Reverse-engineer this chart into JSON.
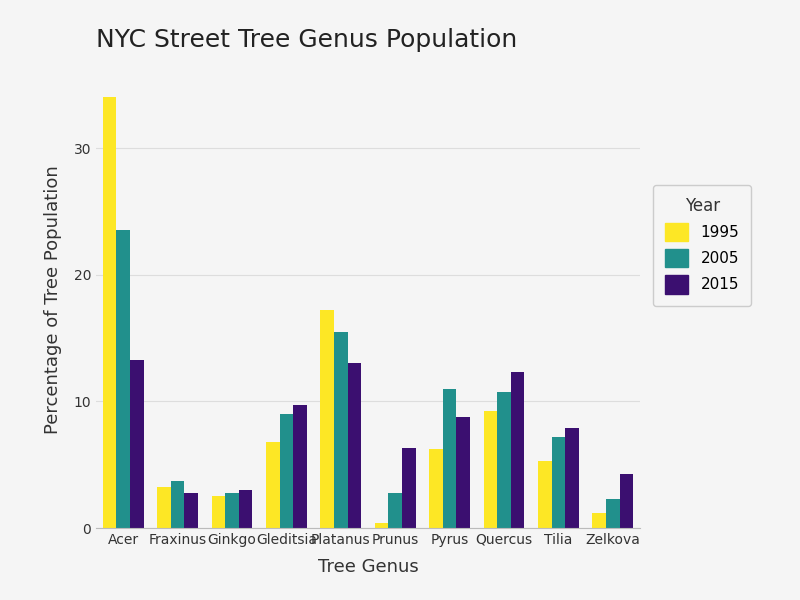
{
  "title": "NYC Street Tree Genus Population",
  "xlabel": "Tree Genus",
  "ylabel": "Percentage of Tree Population",
  "categories": [
    "Acer",
    "Fraxinus",
    "Ginkgo",
    "Gleditsia",
    "Platanus",
    "Prunus",
    "Pyrus",
    "Quercus",
    "Tilia",
    "Zelkova"
  ],
  "years": [
    "1995",
    "2005",
    "2015"
  ],
  "values": {
    "1995": [
      34.0,
      3.2,
      2.5,
      6.8,
      17.2,
      0.4,
      6.2,
      9.2,
      5.3,
      1.2
    ],
    "2005": [
      23.5,
      3.7,
      2.8,
      9.0,
      15.5,
      2.8,
      11.0,
      10.7,
      7.2,
      2.3
    ],
    "2015": [
      13.3,
      2.8,
      3.0,
      9.7,
      13.0,
      6.3,
      8.8,
      12.3,
      7.9,
      4.3
    ]
  },
  "colors": {
    "1995": "#FDE725",
    "2005": "#21908C",
    "2015": "#3B0F70"
  },
  "ylim": [
    0,
    36
  ],
  "yticks": [
    0,
    10,
    20,
    30
  ],
  "background_color": "#F5F5F5",
  "plot_bg_color": "#F5F5F5",
  "grid_color": "#DDDDDD",
  "title_fontsize": 18,
  "axis_label_fontsize": 13,
  "tick_fontsize": 10,
  "legend_title": "Year",
  "bar_width": 0.25
}
